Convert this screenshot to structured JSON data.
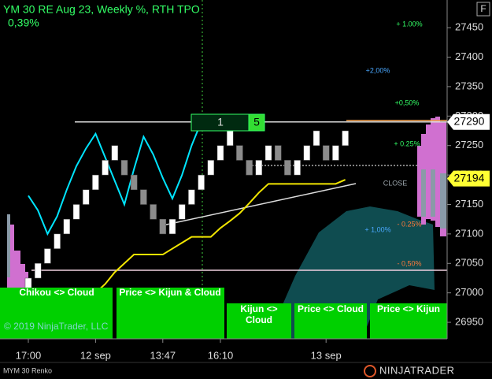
{
  "header": {
    "title": "YM 30 RE  Aug 23, Weekly %, RTH TPO",
    "change": "0,39%",
    "f_button": "F"
  },
  "chart_data": {
    "type": "renko",
    "categories": [
      "17:00",
      null,
      null,
      null,
      null,
      null,
      null,
      "12 sep",
      null,
      null,
      null,
      null,
      null,
      null,
      "13:47",
      null,
      null,
      null,
      null,
      null,
      "16:10",
      null,
      null,
      null,
      null,
      null,
      null,
      null,
      null,
      null,
      null,
      "13 sep",
      null,
      null
    ],
    "open": [
      27000,
      27025,
      27050,
      27075,
      27100,
      27125,
      27150,
      27175,
      27200,
      27225,
      27225,
      27200,
      27175,
      27150,
      27125,
      27100,
      27125,
      27150,
      27175,
      27200,
      27225,
      27250,
      27250,
      27225,
      27200,
      27225,
      27250,
      27225,
      27200,
      27225,
      27250,
      27250,
      27225,
      27250
    ],
    "close": [
      27025,
      27050,
      27075,
      27100,
      27125,
      27150,
      27175,
      27200,
      27225,
      27250,
      27200,
      27175,
      27150,
      27125,
      27100,
      27125,
      27150,
      27175,
      27200,
      27225,
      27250,
      27275,
      27225,
      27200,
      27225,
      27250,
      27225,
      27200,
      27225,
      27250,
      27275,
      27225,
      27250,
      27275
    ],
    "up_color": "#ffffff",
    "down_color": "#8c8c8c",
    "indicators": [
      {
        "color": "#00e5ff",
        "values": [
          27165,
          27140,
          27100,
          27130,
          27175,
          27215,
          27245,
          27270,
          27230,
          27190,
          27150,
          27210,
          27265,
          27235,
          27195,
          27160,
          27200,
          27250,
          27290,
          null,
          null,
          null,
          null,
          null,
          null,
          null,
          null,
          null,
          null,
          null,
          null,
          null,
          null,
          null
        ]
      },
      {
        "color": "#f2e600",
        "values": [
          null,
          null,
          null,
          null,
          null,
          null,
          null,
          27000,
          27015,
          27035,
          27050,
          27065,
          27065,
          27065,
          27065,
          27075,
          27085,
          27095,
          27095,
          27095,
          27110,
          27122,
          27135,
          27152,
          27170,
          27185,
          27185,
          27185,
          27185,
          27185,
          27185,
          27185,
          27185,
          27192
        ]
      }
    ],
    "ylim": [
      26922,
      27497
    ],
    "yticks": [
      26950,
      27000,
      27050,
      27100,
      27150,
      27200,
      27250,
      27300,
      27350,
      27400,
      27450
    ],
    "price_tags": [
      {
        "value": 27290,
        "color": "#ffffff"
      },
      {
        "value": 27194,
        "color": "#ffff33"
      }
    ],
    "annotations": [
      "+ 1.00%",
      "+2,00%",
      "+0,50%",
      "+ 0.25%",
      "CLOSE",
      "- 0.25%",
      "+ 1,00%",
      "- 0,50%"
    ],
    "counter_box": [
      "1",
      "5"
    ]
  },
  "panels": [
    {
      "lines": [
        "Chikou <> Cloud"
      ]
    },
    {
      "lines": [
        "Price <> Kijun & Cloud"
      ]
    },
    {
      "lines": [
        "Kijun <>",
        "Cloud"
      ]
    },
    {
      "lines": [
        "Price <> Cloud"
      ]
    },
    {
      "lines": [
        "Price <> Kijun"
      ]
    }
  ],
  "copyright": "© 2019 NinjaTrader, LLC",
  "footer": {
    "instrument": "MYM 30 Renko",
    "logo": "NINJATRADER"
  }
}
